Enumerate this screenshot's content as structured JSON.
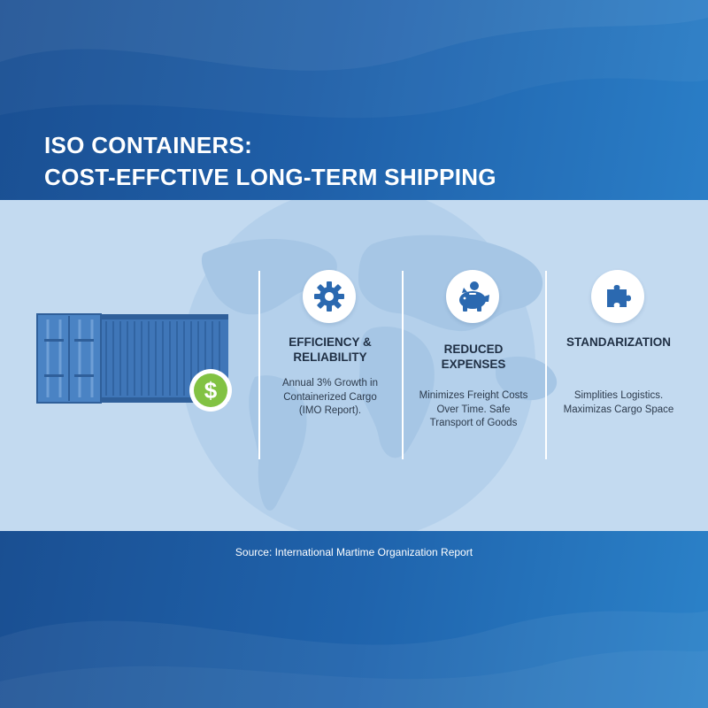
{
  "title": {
    "line1": "ISO CONTAINERS:",
    "line2": "COST-EFFCTIVE LONG-TERM SHIPPING"
  },
  "illustration": {
    "container_icon": "shipping-container-icon",
    "badge_icon": "dollar-icon",
    "badge_symbol": "$"
  },
  "columns": [
    {
      "icon": "gear-icon",
      "heading_lines": [
        "EFFICIENCY &",
        "RELIABILITY"
      ],
      "text_lines": [
        "Annual 3% Growth in",
        "Containerized Cargo",
        "(IMO Report)."
      ]
    },
    {
      "icon": "piggy-bank-icon",
      "heading_lines": [
        "REDUCED",
        "EXPENSES"
      ],
      "text_lines": [
        "Minimizes Freight Costs",
        "Over Time. Safe",
        "Transport of Goods"
      ]
    },
    {
      "icon": "puzzle-piece-icon",
      "heading_lines": [
        "STANDARIZATION"
      ],
      "text_lines": [
        "Simplities Logistics.",
        "Maximizas Cargo Space"
      ]
    }
  ],
  "source": "Source: International Martime Organization Report",
  "colors": {
    "header_blue": "#1d5ea6",
    "band_light": "#c3daf0",
    "globe_blue": "#a6c6e5",
    "container_blue": "#3d74b6",
    "icon_blue": "#2b69b0",
    "dollar_green": "#82c243"
  }
}
